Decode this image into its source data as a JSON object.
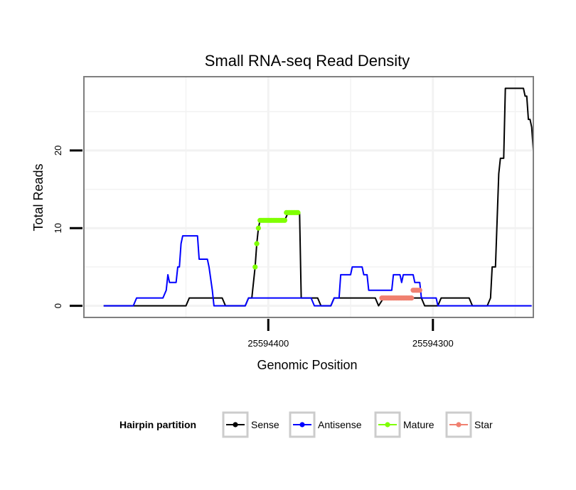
{
  "colors": {
    "sense": "#000000",
    "antisense": "#0000ff",
    "mature": "#7fff00",
    "star": "#f08070",
    "grid": "#f2f2f2",
    "panel_border": "#7f7f7f",
    "legend_key_border": "#cccccc"
  },
  "chart_data": {
    "type": "line",
    "title": "Small RNA-seq Read Density",
    "xlabel": "Genomic Position",
    "ylabel": "Total Reads",
    "x_reversed": true,
    "xlim": [
      25594512,
      25594239
    ],
    "ylim": [
      -1.5,
      29.5
    ],
    "x_ticks": [
      {
        "value": 25594400,
        "label": "25594400"
      },
      {
        "value": 25594300,
        "label": "25594300"
      }
    ],
    "y_ticks": [
      {
        "value": 0,
        "label": "0"
      },
      {
        "value": 10,
        "label": "10"
      },
      {
        "value": 20,
        "label": "20"
      }
    ],
    "legend": {
      "title": "Hairpin partition",
      "position": "bottom",
      "entries": [
        {
          "name": "Sense",
          "color_key": "sense"
        },
        {
          "name": "Antisense",
          "color_key": "antisense"
        },
        {
          "name": "Mature",
          "color_key": "mature"
        },
        {
          "name": "Star",
          "color_key": "star"
        }
      ]
    },
    "series": [
      {
        "name": "Sense",
        "color_key": "sense",
        "style": "line",
        "points": [
          [
            25594500,
            0
          ],
          [
            25594450,
            0
          ],
          [
            25594448,
            1
          ],
          [
            25594428,
            1
          ],
          [
            25594426,
            0
          ],
          [
            25594414,
            0
          ],
          [
            25594412,
            1
          ],
          [
            25594410,
            1
          ],
          [
            25594408,
            5
          ],
          [
            25594407,
            8
          ],
          [
            25594406,
            10
          ],
          [
            25594405,
            11
          ],
          [
            25594390,
            11
          ],
          [
            25594388,
            12
          ],
          [
            25594381,
            12
          ],
          [
            25594380,
            1
          ],
          [
            25594370,
            1
          ],
          [
            25594368,
            0
          ],
          [
            25594362,
            0
          ],
          [
            25594360,
            1
          ],
          [
            25594335,
            1
          ],
          [
            25594333,
            0
          ],
          [
            25594330,
            1
          ],
          [
            25594307,
            1
          ],
          [
            25594305,
            0
          ],
          [
            25594297,
            0
          ],
          [
            25594295,
            1
          ],
          [
            25594278,
            1
          ],
          [
            25594276,
            0
          ],
          [
            25594267,
            0
          ],
          [
            25594265,
            1
          ],
          [
            25594264,
            5
          ],
          [
            25594262,
            5
          ],
          [
            25594260,
            17
          ],
          [
            25594259,
            19
          ],
          [
            25594257,
            19
          ],
          [
            25594256,
            28
          ],
          [
            25594245,
            28
          ],
          [
            25594244,
            27
          ],
          [
            25594243,
            27
          ],
          [
            25594242,
            24
          ],
          [
            25594241,
            24
          ],
          [
            25594240,
            23
          ],
          [
            25594239,
            20
          ]
        ]
      },
      {
        "name": "Antisense",
        "color_key": "antisense",
        "style": "line",
        "points": [
          [
            25594500,
            0
          ],
          [
            25594482,
            0
          ],
          [
            25594480,
            1
          ],
          [
            25594464,
            1
          ],
          [
            25594462,
            2
          ],
          [
            25594461,
            4
          ],
          [
            25594460,
            3
          ],
          [
            25594456,
            3
          ],
          [
            25594455,
            5
          ],
          [
            25594454,
            5
          ],
          [
            25594453,
            8
          ],
          [
            25594452,
            9
          ],
          [
            25594443,
            9
          ],
          [
            25594442,
            6
          ],
          [
            25594437,
            6
          ],
          [
            25594436,
            5
          ],
          [
            25594434,
            2
          ],
          [
            25594433,
            0
          ],
          [
            25594414,
            0
          ],
          [
            25594412,
            1
          ],
          [
            25594374,
            1
          ],
          [
            25594372,
            0
          ],
          [
            25594362,
            0
          ],
          [
            25594360,
            1
          ],
          [
            25594357,
            1
          ],
          [
            25594356,
            4
          ],
          [
            25594350,
            4
          ],
          [
            25594349,
            5
          ],
          [
            25594343,
            5
          ],
          [
            25594342,
            4
          ],
          [
            25594340,
            4
          ],
          [
            25594339,
            2
          ],
          [
            25594325,
            2
          ],
          [
            25594324,
            4
          ],
          [
            25594320,
            4
          ],
          [
            25594319,
            3
          ],
          [
            25594318,
            4
          ],
          [
            25594312,
            4
          ],
          [
            25594311,
            3
          ],
          [
            25594308,
            3
          ],
          [
            25594307,
            1
          ],
          [
            25594298,
            1
          ],
          [
            25594297,
            0
          ],
          [
            25594240,
            0
          ]
        ]
      },
      {
        "name": "Mature",
        "color_key": "mature",
        "style": "points",
        "points": [
          [
            25594408,
            5
          ],
          [
            25594407,
            8
          ],
          [
            25594406,
            10
          ],
          [
            25594405,
            11
          ],
          [
            25594404,
            11
          ],
          [
            25594403,
            11
          ],
          [
            25594402,
            11
          ],
          [
            25594401,
            11
          ],
          [
            25594400,
            11
          ],
          [
            25594399,
            11
          ],
          [
            25594398,
            11
          ],
          [
            25594397,
            11
          ],
          [
            25594396,
            11
          ],
          [
            25594395,
            11
          ],
          [
            25594394,
            11
          ],
          [
            25594393,
            11
          ],
          [
            25594392,
            11
          ],
          [
            25594391,
            11
          ],
          [
            25594390,
            11
          ],
          [
            25594389,
            12
          ],
          [
            25594388,
            12
          ],
          [
            25594387,
            12
          ],
          [
            25594386,
            12
          ],
          [
            25594385,
            12
          ],
          [
            25594384,
            12
          ],
          [
            25594383,
            12
          ],
          [
            25594382,
            12
          ]
        ]
      },
      {
        "name": "Star",
        "color_key": "star",
        "style": "points",
        "points": [
          [
            25594331,
            1
          ],
          [
            25594330,
            1
          ],
          [
            25594329,
            1
          ],
          [
            25594328,
            1
          ],
          [
            25594327,
            1
          ],
          [
            25594326,
            1
          ],
          [
            25594325,
            1
          ],
          [
            25594324,
            1
          ],
          [
            25594323,
            1
          ],
          [
            25594322,
            1
          ],
          [
            25594321,
            1
          ],
          [
            25594320,
            1
          ],
          [
            25594319,
            1
          ],
          [
            25594318,
            1
          ],
          [
            25594317,
            1
          ],
          [
            25594316,
            1
          ],
          [
            25594315,
            1
          ],
          [
            25594314,
            1
          ],
          [
            25594313,
            1
          ],
          [
            25594312,
            2
          ],
          [
            25594311,
            2
          ],
          [
            25594310,
            2
          ],
          [
            25594309,
            2
          ],
          [
            25594308,
            2
          ]
        ]
      }
    ]
  }
}
